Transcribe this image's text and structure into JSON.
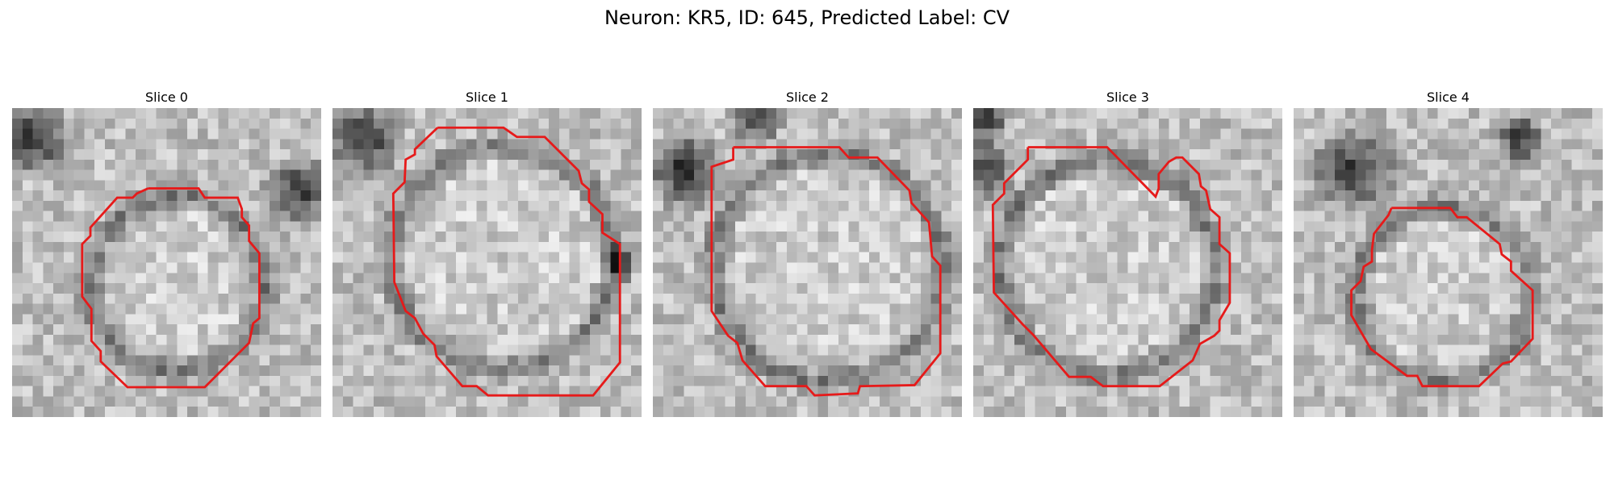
{
  "figure": {
    "title": "Neuron: KR5, ID: 645, Predicted Label: CV"
  },
  "slices": [
    {
      "title": "Slice 0"
    },
    {
      "title": "Slice 1"
    },
    {
      "title": "Slice 2"
    },
    {
      "title": "Slice 3"
    },
    {
      "title": "Slice 4"
    }
  ],
  "colors": {
    "contour": "#e61a1a",
    "background": "#ffffff"
  }
}
